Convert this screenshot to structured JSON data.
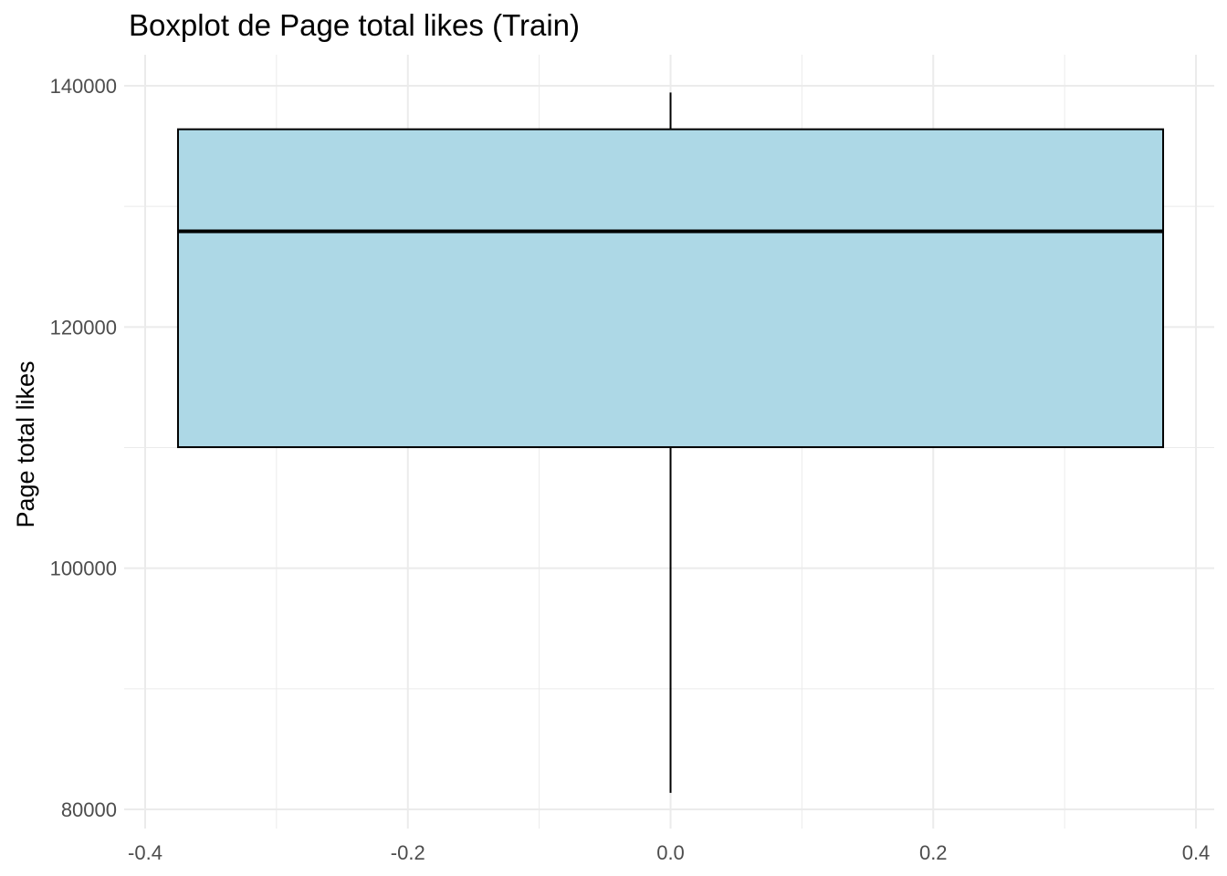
{
  "chart_data": {
    "type": "boxplot",
    "title": "Boxplot de Page total likes (Train)",
    "xlabel": "",
    "ylabel": "Page total likes",
    "xlim": [
      -0.4,
      0.4
    ],
    "ylim": [
      80000,
      140000
    ],
    "x_ticks": [
      "-0.4",
      "-0.2",
      "0.0",
      "0.2",
      "0.4"
    ],
    "y_ticks": [
      "80000",
      "100000",
      "120000",
      "140000"
    ],
    "grid": true,
    "box": {
      "x_center": 0.0,
      "x_left": -0.375,
      "x_right": 0.375,
      "whisker_low": 81370,
      "q1": 110034,
      "median": 127936,
      "q3": 136393,
      "whisker_high": 139441,
      "fill": "#ADD8E6",
      "stroke": "#000000"
    },
    "colors": {
      "grid": "#EBEBEB",
      "tick_text": "#4D4D4D"
    }
  }
}
